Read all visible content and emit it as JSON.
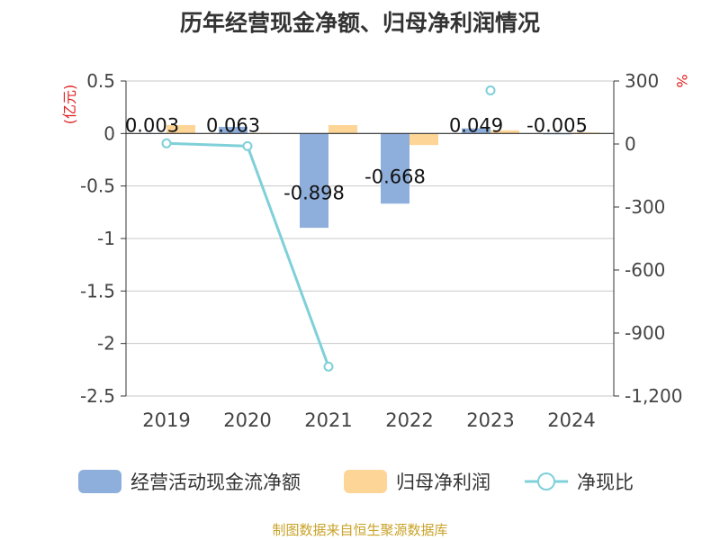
{
  "chart_data": {
    "type": "bar",
    "title": "历年经营现金净额、归母净利润情况",
    "categories": [
      "2019",
      "2020",
      "2021",
      "2022",
      "2023",
      "2024"
    ],
    "left_axis": {
      "unit_label": "(亿元)",
      "ylim": [
        -2.5,
        0.5
      ],
      "ticks": [
        0.5,
        0,
        -0.5,
        -1,
        -1.5,
        -2,
        -2.5
      ],
      "tick_labels": [
        "0.5",
        "0",
        "-0.5",
        "-1",
        "-1.5",
        "-2",
        "-2.5"
      ]
    },
    "right_axis": {
      "unit_label": "%",
      "ylim": [
        -1200,
        300
      ],
      "ticks": [
        300,
        0,
        -300,
        -600,
        -900,
        -1200
      ],
      "tick_labels": [
        "300",
        "0",
        "-300",
        "-600",
        "-900",
        "-1,200"
      ]
    },
    "series": [
      {
        "name": "经营活动现金流净额",
        "kind": "bar",
        "axis": "left",
        "color": "#8eaedb",
        "values": [
          0.003,
          0.063,
          -0.898,
          -0.668,
          0.049,
          -0.005
        ],
        "data_labels": [
          "0.003",
          "0.063",
          "-0.898",
          "-0.668",
          "0.049",
          "-0.005"
        ]
      },
      {
        "name": "归母净利润",
        "kind": "bar",
        "axis": "left",
        "color": "#fdd596",
        "values": [
          0.08,
          0.005,
          0.08,
          -0.11,
          0.03,
          0.01
        ]
      },
      {
        "name": "净现比",
        "kind": "line",
        "axis": "right",
        "color": "#7fd0d9",
        "values": [
          3,
          -10,
          -1060,
          null,
          255,
          null
        ],
        "connected_points": 3
      }
    ],
    "grid": true,
    "legend_position": "bottom"
  },
  "footer": {
    "source": "制图数据来自恒生聚源数据库"
  }
}
